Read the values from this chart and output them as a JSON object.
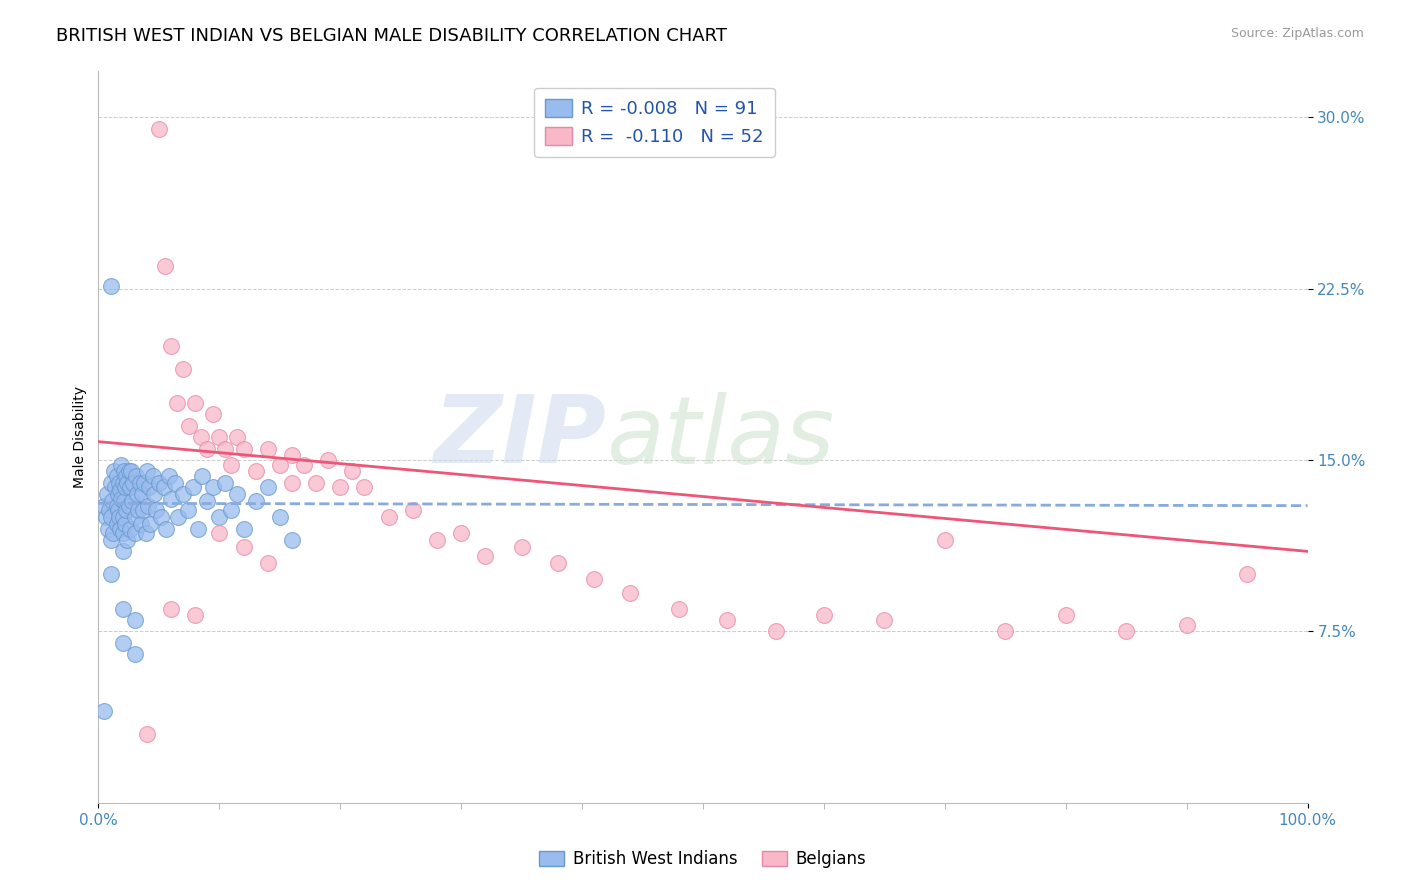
{
  "title": "BRITISH WEST INDIAN VS BELGIAN MALE DISABILITY CORRELATION CHART",
  "source_text": "Source: ZipAtlas.com",
  "ylabel": "Male Disability",
  "xlim": [
    0,
    1
  ],
  "ylim": [
    0,
    0.32
  ],
  "yticks": [
    0.075,
    0.15,
    0.225,
    0.3
  ],
  "ytick_labels": [
    "7.5%",
    "15.0%",
    "22.5%",
    "30.0%"
  ],
  "xticks": [
    0.0,
    1.0
  ],
  "xtick_labels": [
    "0.0%",
    "100.0%"
  ],
  "series1_color": "#99bbee",
  "series1_edge": "#6699cc",
  "series2_color": "#f8b8c8",
  "series2_edge": "#e888a8",
  "trend1_color": "#88aadd",
  "trend2_color": "#ee5577",
  "watermark_zip": "ZIP",
  "watermark_atlas": "atlas",
  "background_color": "#ffffff",
  "grid_color": "#cccccc",
  "title_fontsize": 13,
  "axis_label_fontsize": 10,
  "tick_fontsize": 11,
  "tick_color": "#4488bb",
  "legend_label1": "R = -0.008   N = 91",
  "legend_label2": "R =  -0.110   N = 52",
  "bottom_legend1": "British West Indians",
  "bottom_legend2": "Belgians",
  "series1_x": [
    0.005,
    0.006,
    0.007,
    0.008,
    0.009,
    0.01,
    0.01,
    0.01,
    0.011,
    0.012,
    0.013,
    0.014,
    0.015,
    0.015,
    0.015,
    0.016,
    0.016,
    0.017,
    0.017,
    0.018,
    0.018,
    0.019,
    0.019,
    0.02,
    0.02,
    0.02,
    0.02,
    0.021,
    0.021,
    0.022,
    0.022,
    0.023,
    0.023,
    0.024,
    0.024,
    0.025,
    0.025,
    0.026,
    0.026,
    0.027,
    0.028,
    0.029,
    0.03,
    0.03,
    0.031,
    0.032,
    0.033,
    0.034,
    0.035,
    0.036,
    0.037,
    0.038,
    0.039,
    0.04,
    0.041,
    0.042,
    0.043,
    0.045,
    0.046,
    0.048,
    0.05,
    0.052,
    0.054,
    0.056,
    0.058,
    0.06,
    0.063,
    0.066,
    0.07,
    0.074,
    0.078,
    0.082,
    0.086,
    0.09,
    0.095,
    0.1,
    0.105,
    0.11,
    0.115,
    0.12,
    0.13,
    0.14,
    0.15,
    0.16,
    0.01,
    0.01,
    0.02,
    0.02,
    0.03,
    0.03,
    0.005
  ],
  "series1_y": [
    0.13,
    0.125,
    0.135,
    0.12,
    0.128,
    0.14,
    0.125,
    0.115,
    0.132,
    0.118,
    0.145,
    0.138,
    0.13,
    0.122,
    0.143,
    0.135,
    0.128,
    0.14,
    0.125,
    0.137,
    0.12,
    0.148,
    0.133,
    0.14,
    0.125,
    0.118,
    0.11,
    0.145,
    0.132,
    0.138,
    0.122,
    0.143,
    0.128,
    0.14,
    0.115,
    0.145,
    0.13,
    0.138,
    0.12,
    0.145,
    0.132,
    0.14,
    0.125,
    0.118,
    0.143,
    0.135,
    0.128,
    0.14,
    0.122,
    0.135,
    0.128,
    0.14,
    0.118,
    0.145,
    0.13,
    0.138,
    0.122,
    0.143,
    0.135,
    0.128,
    0.14,
    0.125,
    0.138,
    0.12,
    0.143,
    0.133,
    0.14,
    0.125,
    0.135,
    0.128,
    0.138,
    0.12,
    0.143,
    0.132,
    0.138,
    0.125,
    0.14,
    0.128,
    0.135,
    0.12,
    0.132,
    0.138,
    0.125,
    0.115,
    0.226,
    0.1,
    0.085,
    0.07,
    0.08,
    0.065,
    0.04
  ],
  "series2_x": [
    0.05,
    0.055,
    0.06,
    0.065,
    0.07,
    0.075,
    0.08,
    0.085,
    0.09,
    0.095,
    0.1,
    0.105,
    0.11,
    0.115,
    0.12,
    0.13,
    0.14,
    0.15,
    0.16,
    0.17,
    0.18,
    0.19,
    0.2,
    0.21,
    0.22,
    0.24,
    0.26,
    0.28,
    0.3,
    0.32,
    0.35,
    0.38,
    0.41,
    0.44,
    0.48,
    0.52,
    0.56,
    0.6,
    0.65,
    0.7,
    0.75,
    0.8,
    0.85,
    0.9,
    0.95,
    0.06,
    0.08,
    0.1,
    0.12,
    0.14,
    0.16,
    0.04
  ],
  "series2_y": [
    0.295,
    0.235,
    0.2,
    0.175,
    0.19,
    0.165,
    0.175,
    0.16,
    0.155,
    0.17,
    0.16,
    0.155,
    0.148,
    0.16,
    0.155,
    0.145,
    0.155,
    0.148,
    0.14,
    0.148,
    0.14,
    0.15,
    0.138,
    0.145,
    0.138,
    0.125,
    0.128,
    0.115,
    0.118,
    0.108,
    0.112,
    0.105,
    0.098,
    0.092,
    0.085,
    0.08,
    0.075,
    0.082,
    0.08,
    0.115,
    0.075,
    0.082,
    0.075,
    0.078,
    0.1,
    0.085,
    0.082,
    0.118,
    0.112,
    0.105,
    0.152,
    0.03
  ],
  "trend1_intercept": 0.131,
  "trend1_slope": -0.001,
  "trend2_intercept": 0.158,
  "trend2_slope": -0.048
}
